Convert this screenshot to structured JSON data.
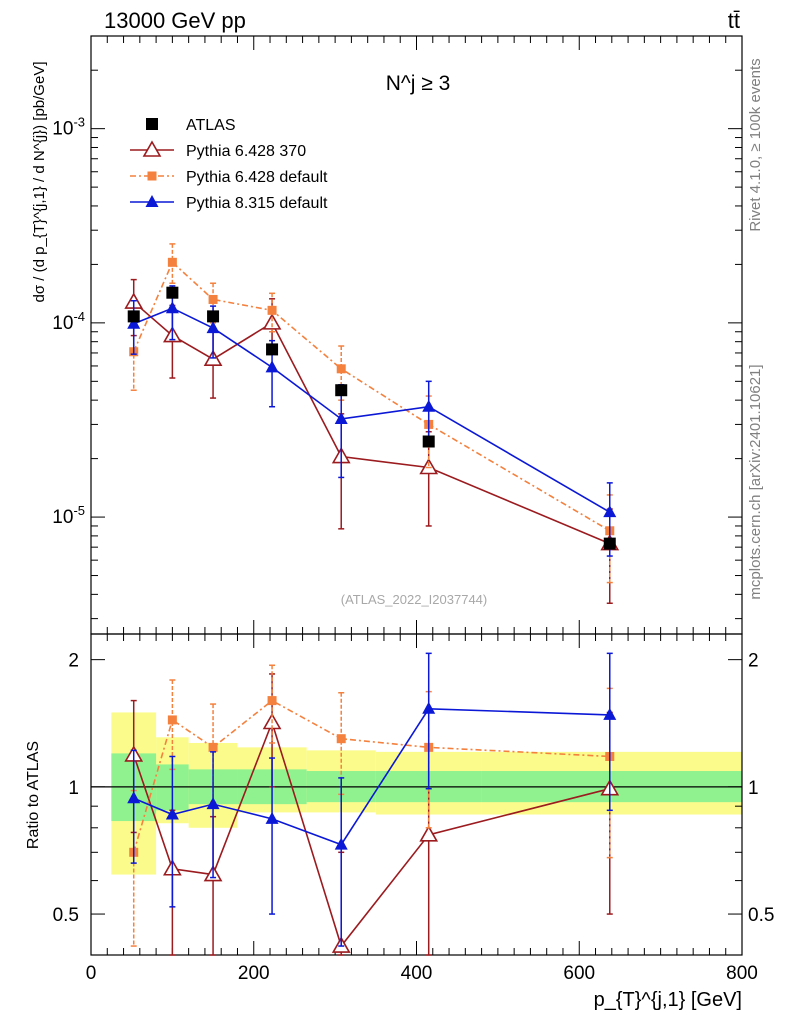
{
  "header": {
    "left": "13000 GeV pp",
    "right": "tt̄"
  },
  "side_labels": {
    "rivet": "Rivet 4.1.0, ≥ 100k events",
    "mcplots": "mcplots.cern.ch [arXiv:2401.10621]"
  },
  "chart_data": [
    {
      "type": "scatter",
      "panel": "main",
      "title": "N^j ≥ 3",
      "ylabel": "dσ / (d p_{T}^{j,1} / d N^{j}) [pb/GeV]",
      "yscale": "log",
      "ylim": [
        2.5e-06,
        0.003
      ],
      "xlim": [
        0,
        800
      ],
      "y_tick_labels": [
        "10^-5",
        "10^-4",
        "10^-3"
      ],
      "watermark": "(ATLAS_2022_I2037744)",
      "series": [
        {
          "name": "ATLAS",
          "color": "#000000",
          "marker": "square-filled",
          "x": [
            52.5,
            100,
            150,
            222.5,
            307.5,
            415,
            637.5
          ],
          "xerr": [
            0,
            0,
            0,
            0,
            0,
            0,
            0
          ],
          "y": [
            0.000108,
            0.000143,
            0.000108,
            7.3e-05,
            4.5e-05,
            2.45e-05,
            7.3e-06
          ],
          "ylo": [
            0.000108,
            0.000143,
            0.000108,
            7.3e-05,
            4.5e-05,
            2.45e-05,
            7.3e-06
          ],
          "yhi": [
            0.000108,
            0.000143,
            0.000108,
            7.3e-05,
            4.5e-05,
            2.45e-05,
            7.3e-06
          ]
        },
        {
          "name": "Pythia 6.428 370",
          "color": "#9b1b1f",
          "marker": "triangle-open",
          "dash": "",
          "x": [
            52.5,
            100,
            150,
            222.5,
            307.5,
            415,
            637.5
          ],
          "y": [
            0.000128,
            8.6e-05,
            6.5e-05,
            0.0001,
            2.05e-05,
            1.8e-05,
            7.3e-06
          ],
          "ylo": [
            8.6e-05,
            5.2e-05,
            4.1e-05,
            7.2e-05,
            8.7e-06,
            9e-06,
            3.6e-06
          ],
          "yhi": [
            0.000167,
            0.000123,
            9e-05,
            0.000133,
            3.4e-05,
            2.75e-05,
            1.1e-05
          ]
        },
        {
          "name": "Pythia 6.428 default",
          "color": "#f4813e",
          "marker": "square-small",
          "dash": "6,3,2,3",
          "x": [
            52.5,
            100,
            150,
            222.5,
            307.5,
            415,
            637.5
          ],
          "y": [
            7.1e-05,
            0.000205,
            0.000132,
            0.000116,
            5.8e-05,
            3e-05,
            8.5e-06
          ],
          "ylo": [
            4.5e-05,
            0.00016,
            0.0001,
            9e-05,
            4e-05,
            1.8e-05,
            4.6e-06
          ],
          "yhi": [
            9.8e-05,
            0.000255,
            0.00016,
            0.000142,
            7.6e-05,
            4.2e-05,
            1.3e-05
          ]
        },
        {
          "name": "Pythia 8.315 default",
          "color": "#0b18d6",
          "marker": "triangle-filled",
          "dash": "",
          "x": [
            52.5,
            100,
            150,
            222.5,
            307.5,
            415,
            637.5
          ],
          "y": [
            9.9e-05,
            0.000119,
            9.4e-05,
            5.9e-05,
            3.2e-05,
            3.7e-05,
            1.06e-05
          ],
          "ylo": [
            6.9e-05,
            8.2e-05,
            6.6e-05,
            3.7e-05,
            1.6e-05,
            2.4e-05,
            6.3e-06
          ],
          "yhi": [
            0.00013,
            0.000155,
            0.000122,
            8.1e-05,
            4.8e-05,
            5e-05,
            1.5e-05
          ]
        }
      ]
    },
    {
      "type": "scatter",
      "panel": "ratio",
      "ylabel": "Ratio to ATLAS",
      "xlabel": "p_{T}^{j,1} [GeV]",
      "ylim": [
        0.4,
        2.3
      ],
      "xlim": [
        0,
        800
      ],
      "x_ticks": [
        0,
        200,
        400,
        600,
        800
      ],
      "y_ticks": [
        0.5,
        1,
        2
      ],
      "y_tick_labels": [
        "0.5",
        "1",
        "2"
      ],
      "bands": {
        "edges": [
          25,
          80,
          120,
          180,
          265,
          350,
          480,
          800
        ],
        "stat_lo": [
          0.83,
          0.88,
          0.91,
          0.91,
          0.92,
          0.92,
          0.92
        ],
        "stat_hi": [
          1.2,
          1.13,
          1.1,
          1.1,
          1.09,
          1.09,
          1.09
        ],
        "total_lo": [
          0.62,
          0.82,
          0.8,
          0.87,
          0.87,
          0.86,
          0.86
        ],
        "total_hi": [
          1.5,
          1.31,
          1.27,
          1.24,
          1.22,
          1.21,
          1.21
        ]
      },
      "series": [
        {
          "name": "Pythia 6.428 370",
          "color": "#9b1b1f",
          "marker": "triangle-open",
          "dash": "",
          "x": [
            52.5,
            100,
            150,
            222.5,
            307.5,
            415,
            637.5
          ],
          "y": [
            1.19,
            0.64,
            0.62,
            1.42,
            0.42,
            0.77,
            0.99
          ],
          "ylo": [
            0.78,
            0.35,
            0.35,
            1.0,
            0.3,
            0.3,
            0.5
          ],
          "yhi": [
            1.6,
            0.88,
            0.85,
            1.85,
            0.7,
            1.25,
            1.5
          ]
        },
        {
          "name": "Pythia 6.428 default",
          "color": "#f4813e",
          "marker": "square-small",
          "dash": "6,3,2,3",
          "x": [
            52.5,
            100,
            150,
            222.5,
            307.5,
            415,
            637.5
          ],
          "y": [
            0.7,
            1.44,
            1.24,
            1.6,
            1.3,
            1.24,
            1.18
          ],
          "ylo": [
            0.42,
            1.1,
            0.92,
            1.27,
            0.96,
            0.8,
            0.68
          ],
          "yhi": [
            0.98,
            1.79,
            1.57,
            1.94,
            1.67,
            1.68,
            1.71
          ]
        },
        {
          "name": "Pythia 8.315 default",
          "color": "#0b18d6",
          "marker": "triangle-filled",
          "dash": "",
          "x": [
            52.5,
            100,
            150,
            222.5,
            307.5,
            415,
            637.5
          ],
          "y": [
            0.94,
            0.86,
            0.91,
            0.84,
            0.73,
            1.53,
            1.48
          ],
          "ylo": [
            0.66,
            0.52,
            0.61,
            0.5,
            0.42,
            0.99,
            0.88
          ],
          "yhi": [
            1.22,
            1.18,
            1.21,
            1.17,
            1.05,
            2.07,
            2.07
          ]
        }
      ]
    }
  ]
}
